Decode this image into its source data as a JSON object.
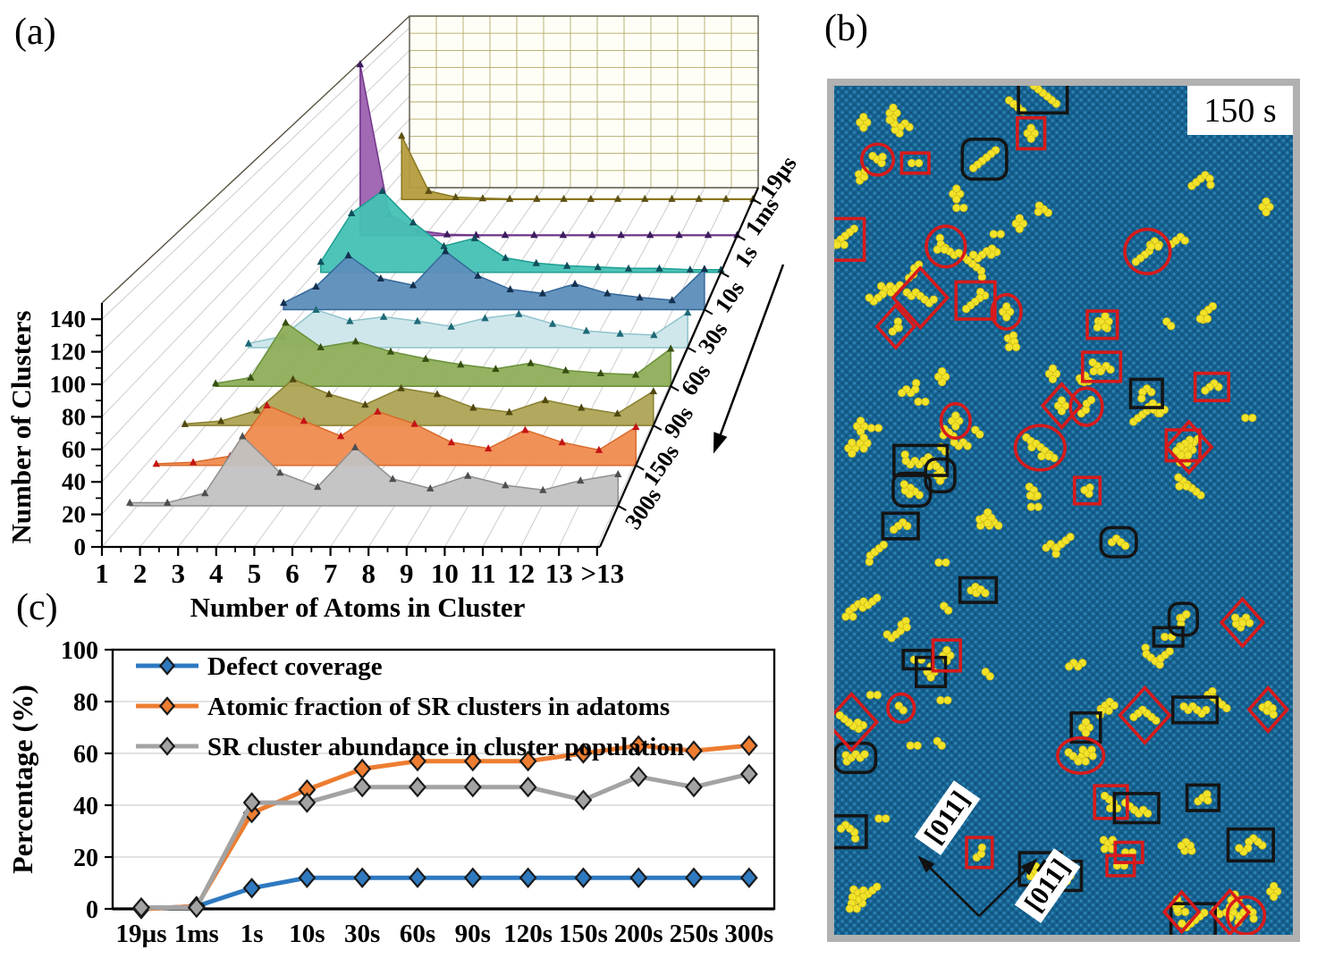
{
  "figure": {
    "panel_a_label": "(a)",
    "panel_b_label": "(b)",
    "panel_c_label": "(c)"
  },
  "chart_data": [
    {
      "id": "cluster-size-distribution-waterfall",
      "type": "area",
      "projection": "3d-waterfall",
      "xlabel": "Number of Atoms in Cluster",
      "ylabel": "Number of Clusters",
      "categories": [
        "1",
        "2",
        "3",
        "4",
        "5",
        "6",
        "7",
        "8",
        "9",
        "10",
        "11",
        "12",
        "13",
        ">13"
      ],
      "ylim": [
        0,
        140
      ],
      "yticks": [
        0,
        20,
        40,
        60,
        80,
        100,
        120,
        140
      ],
      "time_order_back_to_front": [
        "19µs",
        "1ms",
        "1s",
        "10s",
        "30s",
        "60s",
        "90s",
        "150s",
        "300s"
      ],
      "series": [
        {
          "name": "19µs",
          "fill": "#B49C3E",
          "edge": "#8A7820",
          "marker": "#5E5014",
          "values": [
            52,
            7,
            2,
            1,
            0.5,
            0.5,
            0.5,
            0.5,
            0.5,
            0.5,
            0.5,
            0.5,
            0.5,
            0.5
          ]
        },
        {
          "name": "1ms",
          "fill": "#9D61B0",
          "edge": "#71368A",
          "marker": "#3C1B5E",
          "values": [
            135,
            17,
            4,
            1,
            0.5,
            0.5,
            0.5,
            0.5,
            0.5,
            0.5,
            0.5,
            0.5,
            0.5,
            0.5
          ]
        },
        {
          "name": "1s",
          "fill": "#45C1B4",
          "edge": "#1D9E92",
          "marker": "#0F4F5C",
          "values": [
            8,
            45,
            62,
            38,
            20,
            26,
            11,
            7,
            5,
            4,
            3,
            3,
            2,
            2
          ]
        },
        {
          "name": "10s",
          "fill": "#5C8EBA",
          "edge": "#35689A",
          "marker": "#14304F",
          "values": [
            5,
            17,
            40,
            23,
            18,
            43,
            25,
            15,
            12,
            19,
            12,
            9,
            7,
            30
          ]
        },
        {
          "name": "30s",
          "fill": "#CCE6EA",
          "edge": "#8FC3CC",
          "marker": "#1E6A77",
          "values": [
            3,
            8,
            27,
            19,
            22,
            19,
            15,
            21,
            24,
            17,
            12,
            10,
            9,
            25
          ]
        },
        {
          "name": "60s",
          "fill": "#8EAE58",
          "edge": "#68903A",
          "marker": "#374F10",
          "values": [
            2,
            6,
            44,
            27,
            31,
            24,
            19,
            15,
            12,
            16,
            11,
            9,
            8,
            26
          ]
        },
        {
          "name": "90s",
          "fill": "#AEA355",
          "edge": "#8A8030",
          "marker": "#4F480E",
          "values": [
            1,
            3,
            10,
            31,
            21,
            14,
            25,
            21,
            12,
            9,
            17,
            12,
            8,
            23
          ]
        },
        {
          "name": "150s",
          "fill": "#EF8B4F",
          "edge": "#D96A2A",
          "marker": "#C41414",
          "values": [
            1,
            2,
            6,
            39,
            29,
            19,
            35,
            27,
            15,
            11,
            23,
            15,
            10,
            25
          ]
        },
        {
          "name": "300s",
          "fill": "#C2C2C2",
          "edge": "#8F8F8F",
          "marker": "#4F4F4F",
          "values": [
            2,
            2,
            8,
            44,
            21,
            12,
            37,
            17,
            11,
            19,
            13,
            10,
            16,
            20
          ]
        }
      ]
    },
    {
      "id": "percentage-vs-time",
      "type": "line",
      "xlabel": "",
      "ylabel": "Percentage (%)",
      "categories": [
        "19µs",
        "1ms",
        "1s",
        "10s",
        "30s",
        "60s",
        "90s",
        "120s",
        "150s",
        "200s",
        "250s",
        "300s"
      ],
      "ylim": [
        0,
        100
      ],
      "yticks": [
        0,
        20,
        40,
        60,
        80,
        100
      ],
      "grid": true,
      "legend_position": "top-left",
      "series": [
        {
          "name": "Defect coverage",
          "color": "#2E79C0",
          "values": [
            0,
            1,
            8,
            12,
            12,
            12,
            12,
            12,
            12,
            12,
            12,
            12
          ]
        },
        {
          "name": "Atomic fraction of SR clusters in adatoms",
          "color": "#ED7D31",
          "values": [
            0,
            1,
            37,
            46,
            54,
            57,
            57,
            57,
            60,
            63,
            61,
            63
          ]
        },
        {
          "name": "SR cluster abundance in cluster population",
          "color": "#A3A3A3",
          "values": [
            0.5,
            0.5,
            41,
            41,
            47,
            47,
            47,
            47,
            42,
            51,
            47,
            52
          ]
        }
      ]
    }
  ],
  "panel_b": {
    "time_badge": "150 s",
    "direction_label_1": "[011]",
    "direction_label_2_prefix": "[01",
    "direction_label_2_bar_digit": "1",
    "direction_label_2_suffix": "]",
    "colors": {
      "substrate_blue": "#16618F",
      "substrate_dot_light": "#2F86B6",
      "substrate_dot_dark": "#0C4C75",
      "adatom_yellow": "#F2E32A",
      "adatom_edge": "#C9B512",
      "annotation_red": "#D81A1A",
      "annotation_black": "#141414",
      "frame_gray": "#B1B1B1",
      "badge_bg": "#FFFFFF"
    },
    "approx_counts": {
      "yellow_clusters": 125,
      "red_ellipses": 10,
      "red_diamonds": 10,
      "red_rects": 14,
      "black_rects": 17,
      "black_rounded_squares": 6
    }
  }
}
